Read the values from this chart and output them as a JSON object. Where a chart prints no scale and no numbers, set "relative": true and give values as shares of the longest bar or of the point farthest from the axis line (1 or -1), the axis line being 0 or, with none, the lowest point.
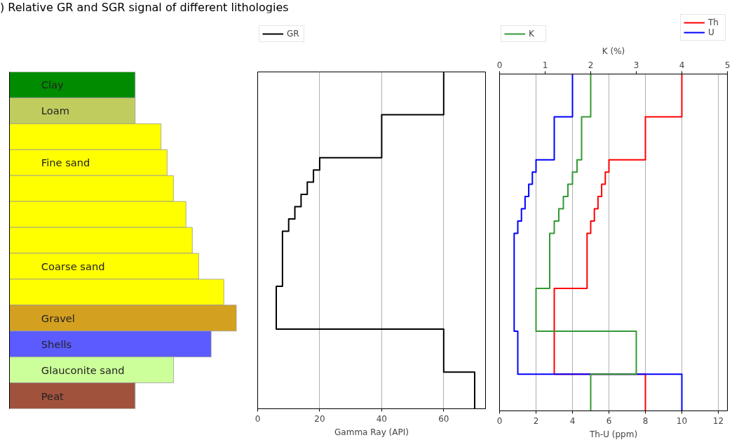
{
  "chart_data": [
    {
      "type": "bar",
      "orientation": "horizontal",
      "relative": true,
      "title": ") Relative GR and SGR signal of different lithologies",
      "tick_labels": false,
      "categories": [
        "Clay",
        "Loam",
        null,
        "Fine sand",
        null,
        null,
        null,
        "Coarse sand",
        null,
        "Gravel",
        "Shells",
        "Glauconite sand",
        "Peat"
      ],
      "values": [
        0.554,
        0.554,
        0.668,
        0.695,
        0.723,
        0.778,
        0.806,
        0.834,
        0.945,
        1,
        0.889,
        0.723,
        0.554
      ],
      "colors": [
        "#008c00",
        "#c0cc5e",
        "#ffff00",
        "#ffff00",
        "#ffff00",
        "#ffff00",
        "#ffff00",
        "#ffff00",
        "#ffff00",
        "#d4a020",
        "#5b5bff",
        "#ccff99",
        "#a0523d"
      ]
    },
    {
      "type": "step",
      "orientation": "horizontal",
      "categories": [
        null,
        null,
        null,
        null,
        null,
        null,
        null,
        null,
        null,
        null,
        null,
        null,
        null,
        null,
        null,
        null,
        null,
        null,
        null,
        null,
        null,
        null,
        null,
        null,
        null,
        null,
        null,
        null,
        null,
        null,
        null,
        null,
        null,
        null,
        null,
        null,
        null,
        null,
        null,
        null,
        null,
        null,
        null,
        null,
        null,
        null,
        null,
        null,
        null,
        null,
        null,
        null,
        null,
        null,
        null,
        null
      ],
      "series": [
        {
          "name": "GR",
          "color": "#000000",
          "values": [
            60,
            60,
            60,
            60,
            60,
            60,
            60,
            40,
            40,
            40,
            40,
            40,
            40,
            40,
            20,
            20,
            18,
            18,
            16,
            16,
            14,
            14,
            12,
            12,
            10,
            10,
            8,
            8,
            8,
            8,
            8,
            8,
            8,
            8,
            8,
            6,
            6,
            6,
            6,
            6,
            6,
            6,
            60,
            60,
            60,
            60,
            60,
            60,
            60,
            70,
            70,
            70,
            70,
            70,
            70,
            70
          ]
        }
      ],
      "xlim": [
        0,
        73.5
      ],
      "xticks": [
        0,
        20,
        40,
        60
      ],
      "xlabel": "Gamma Ray (API)",
      "tick_labels": "x",
      "grid": "x",
      "legend": "top left"
    },
    {
      "type": "step",
      "orientation": "horizontal",
      "categories": [
        null,
        null,
        null,
        null,
        null,
        null,
        null,
        null,
        null,
        null,
        null,
        null,
        null,
        null,
        null,
        null,
        null,
        null,
        null,
        null,
        null,
        null,
        null,
        null,
        null,
        null,
        null,
        null,
        null,
        null,
        null,
        null,
        null,
        null,
        null,
        null,
        null,
        null,
        null,
        null,
        null,
        null,
        null,
        null,
        null,
        null,
        null,
        null,
        null,
        null,
        null,
        null,
        null,
        null,
        null,
        null
      ],
      "series": [
        {
          "name": "Th",
          "color": "#ff0000",
          "values": [
            10,
            10,
            10,
            10,
            10,
            10,
            10,
            8,
            8,
            8,
            8,
            8,
            8,
            8,
            6,
            6,
            5.8,
            5.8,
            5.6,
            5.6,
            5.4,
            5.4,
            5.2,
            5.2,
            5.0,
            5.0,
            4.8,
            4.8,
            4.8,
            4.8,
            4.8,
            4.8,
            4.8,
            4.8,
            4.8,
            3,
            3,
            3,
            3,
            3,
            3,
            3,
            3,
            3,
            3,
            3,
            3,
            3,
            3,
            8,
            8,
            8,
            8,
            8,
            8,
            8
          ]
        },
        {
          "name": "U",
          "color": "#0000ff",
          "values": [
            4,
            4,
            4,
            4,
            4,
            4,
            4,
            3,
            3,
            3,
            3,
            3,
            3,
            3,
            2,
            2,
            1.8,
            1.8,
            1.6,
            1.6,
            1.4,
            1.4,
            1.2,
            1.2,
            1.0,
            1.0,
            0.8,
            0.8,
            0.8,
            0.8,
            0.8,
            0.8,
            0.8,
            0.8,
            0.8,
            0.8,
            0.8,
            0.8,
            0.8,
            0.8,
            0.8,
            0.8,
            1,
            1,
            1,
            1,
            1,
            1,
            1,
            10,
            10,
            10,
            10,
            10,
            10,
            10
          ]
        },
        {
          "name": "K",
          "color": "#339933",
          "axis": "x2",
          "values": [
            2,
            2,
            2,
            2,
            2,
            2,
            2,
            1.8,
            1.8,
            1.8,
            1.8,
            1.8,
            1.8,
            1.8,
            1.7,
            1.7,
            1.6,
            1.6,
            1.5,
            1.5,
            1.4,
            1.4,
            1.3,
            1.3,
            1.2,
            1.2,
            1.1,
            1.1,
            1.1,
            1.1,
            1.1,
            1.1,
            1.1,
            1.1,
            1.1,
            0.8,
            0.8,
            0.8,
            0.8,
            0.8,
            0.8,
            0.8,
            3.0,
            3.0,
            3.0,
            3.0,
            3.0,
            3.0,
            3.0,
            2.0,
            2.0,
            2.0,
            2.0,
            2.0,
            2.0,
            2.0
          ]
        }
      ],
      "xlim": [
        0,
        12.5
      ],
      "xticks": [
        0,
        2,
        4,
        6,
        8,
        10,
        12
      ],
      "xlabel": "Th-U (ppm)",
      "x2lim": [
        0,
        5
      ],
      "x2ticks": [
        0,
        1,
        2,
        3,
        4,
        5
      ],
      "x2label": "K (%)",
      "tick_labels": "x",
      "grid": "x",
      "legend": "top"
    }
  ]
}
